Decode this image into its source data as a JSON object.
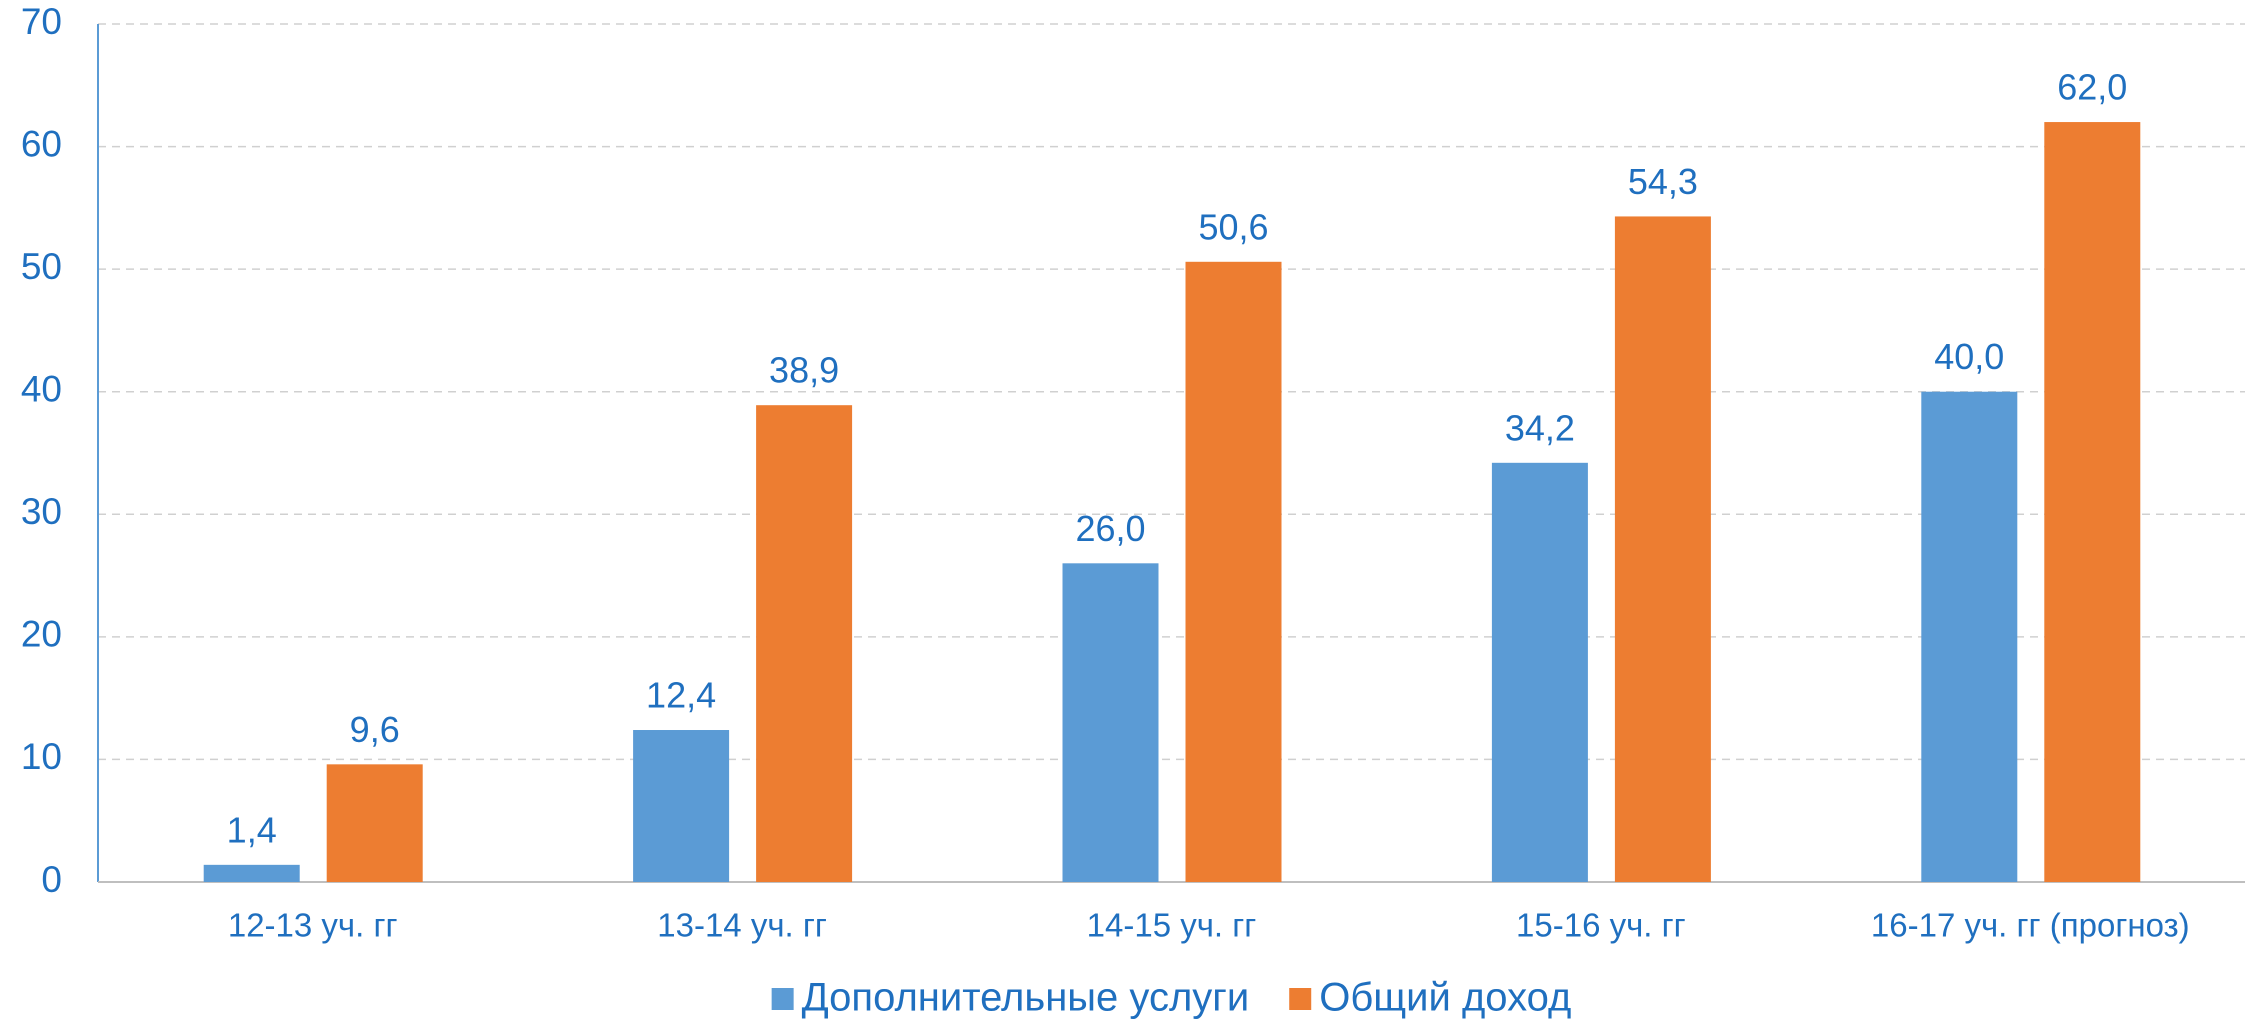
{
  "chart_data": {
    "type": "bar",
    "categories": [
      "12-13 уч. гг",
      "13-14 уч. гг",
      "14-15 уч. гг",
      "15-16 уч. гг",
      "16-17 уч. гг (прогноз)"
    ],
    "series": [
      {
        "name": "Дополнительные услуги",
        "color": "#5b9bd5",
        "values": [
          1.4,
          12.4,
          26.0,
          34.2,
          40.0
        ],
        "value_labels": [
          "1,4",
          "12,4",
          "26,0",
          "34,2",
          "40,0"
        ]
      },
      {
        "name": "Общий доход",
        "color": "#ed7d31",
        "values": [
          9.6,
          38.9,
          50.6,
          54.3,
          62.0
        ],
        "value_labels": [
          "9,6",
          "38,9",
          "50,6",
          "54,3",
          "62,0"
        ]
      }
    ],
    "ylim": [
      0,
      70
    ],
    "yticks": [
      0,
      10,
      20,
      30,
      40,
      50,
      60,
      70
    ],
    "grid": true,
    "legend": "bottom"
  }
}
